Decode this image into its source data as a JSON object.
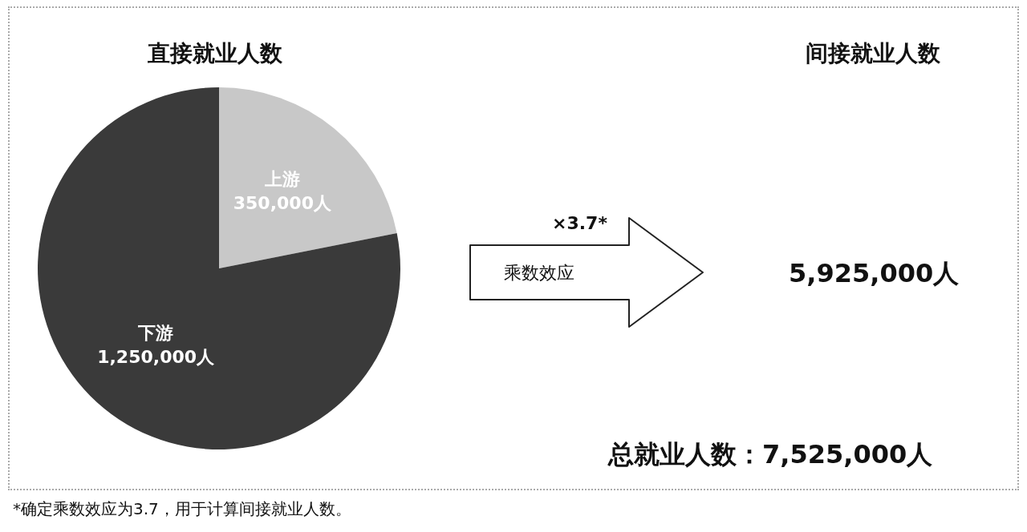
{
  "chart_data": {
    "type": "pie",
    "title": "直接就业人数",
    "categories": [
      "上游",
      "下游"
    ],
    "values": [
      350000,
      1250000
    ],
    "value_labels": [
      "350,000人",
      "1,250,000人"
    ],
    "colors": [
      "#c8c8c8",
      "#3a3a3a"
    ],
    "legend": false,
    "annotations": [
      "间接就业人数",
      "×3.7*",
      "乘数效应",
      "5,925,000人",
      "总就业人数：7,525,000人",
      "*确定乘数效应为3.7，用于计算间接就业人数。"
    ]
  }
}
